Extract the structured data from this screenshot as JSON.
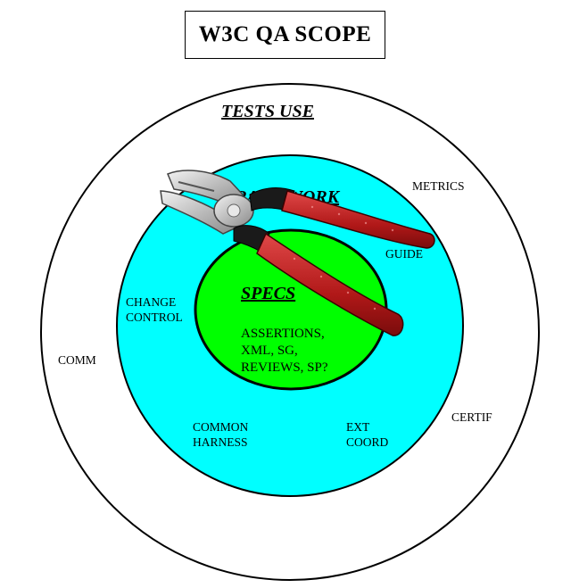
{
  "title": "W3C QA SCOPE",
  "rings": {
    "outer": {
      "label": "TESTS USE",
      "fill": "#ffffff"
    },
    "middle": {
      "label": "FRAMEWORK",
      "fill": "#00ffff"
    },
    "inner": {
      "label": "SPECS",
      "fill": "#00ff00"
    }
  },
  "inner_items": [
    "ASSERTIONS,",
    "XML, SG,",
    "REVIEWS,  SP?"
  ],
  "labels": {
    "metrics": "METRICS",
    "guide": "GUIDE",
    "change_control": [
      "CHANGE",
      "CONTROL"
    ],
    "comm": "COMM",
    "certif": "CERTIF",
    "common_harness": [
      "COMMON",
      "HARNESS"
    ],
    "ext_coord": [
      "EXT",
      "COORD"
    ]
  },
  "colors": {
    "outline": "#000000",
    "plier_handle": "#b31a1a",
    "plier_metal": "#c8c8c8"
  },
  "image": {
    "icon": "pliers-icon"
  }
}
